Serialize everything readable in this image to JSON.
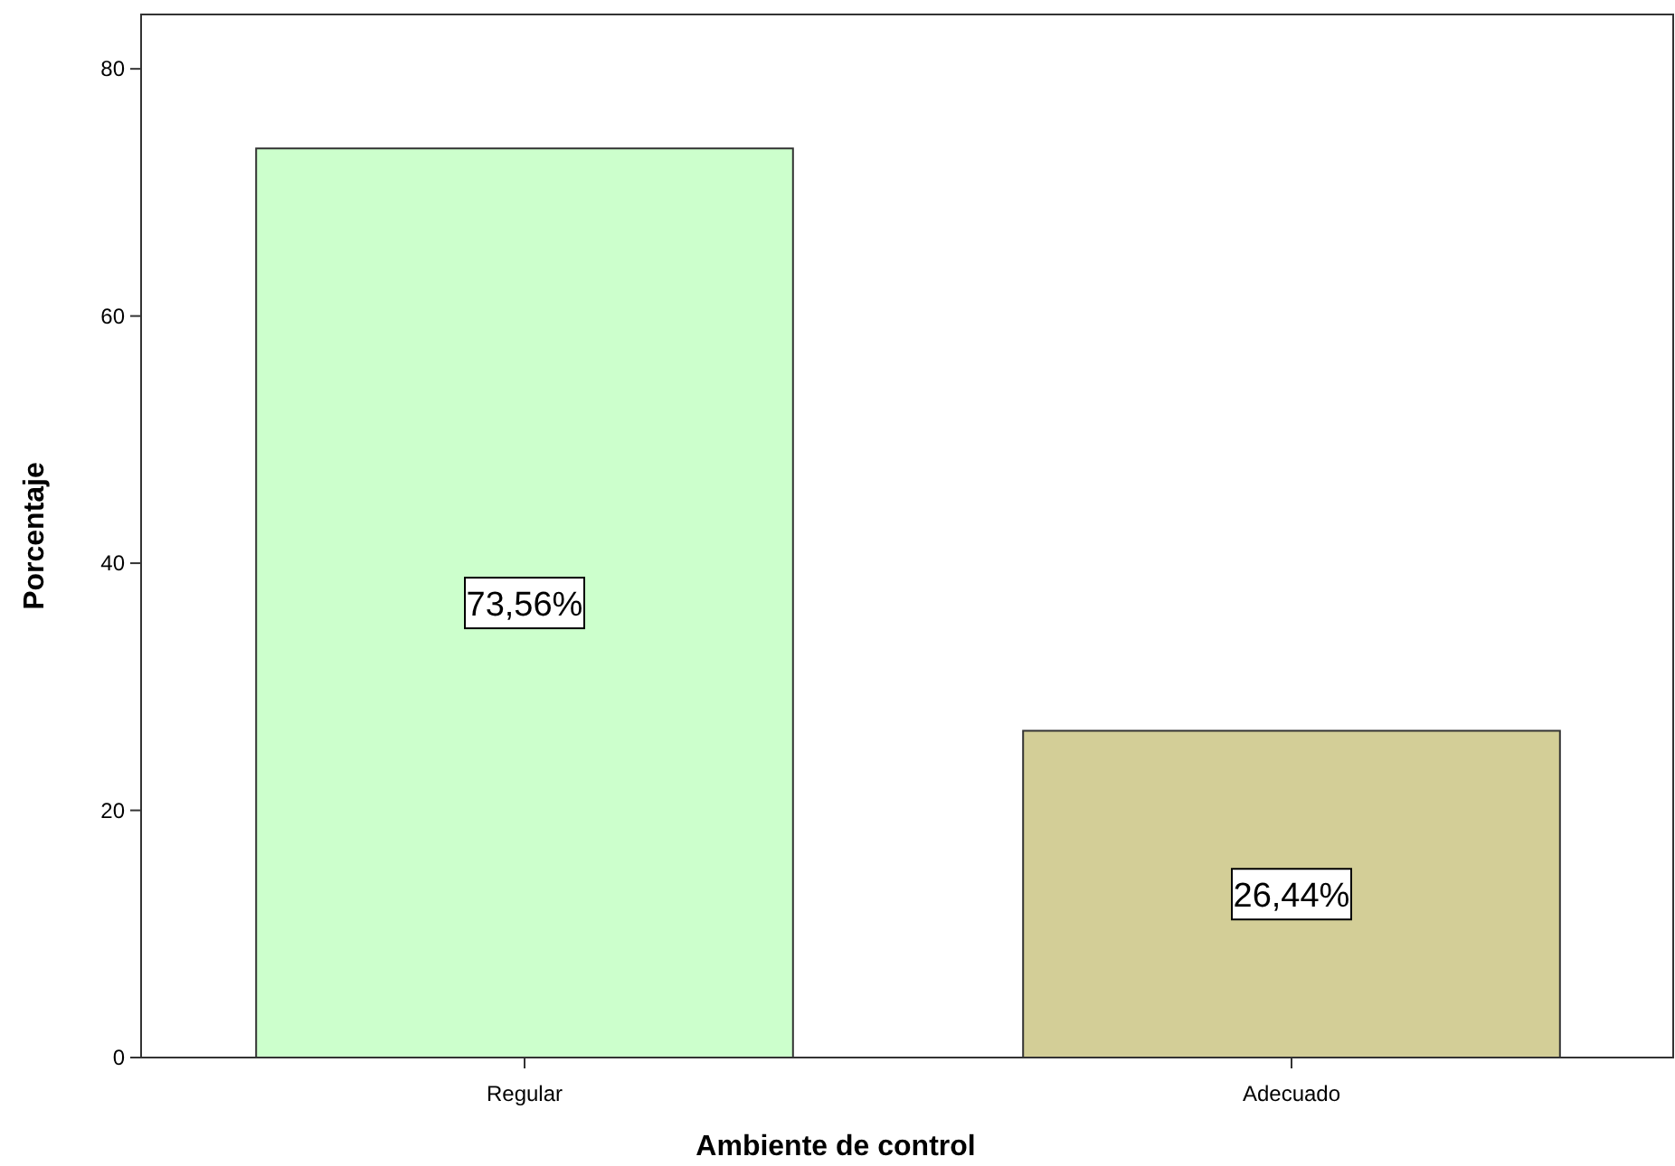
{
  "chart_data": {
    "type": "bar",
    "xlabel": "Ambiente de control",
    "ylabel": "Porcentaje",
    "categories": [
      "Regular",
      "Adecuado"
    ],
    "values": [
      73.56,
      26.44
    ],
    "colors": [
      "#ccffcc",
      "#d3ce97"
    ],
    "value_labels": [
      "73,56%",
      "26,44%"
    ],
    "ylim": [
      0,
      84.4
    ],
    "yticks": [
      0,
      20,
      40,
      60,
      80
    ],
    "grid": false
  }
}
